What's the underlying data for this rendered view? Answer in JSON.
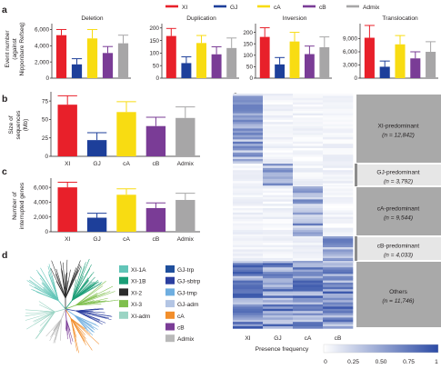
{
  "colors": {
    "XI": "#e8202a",
    "GJ": "#1d3f9a",
    "cA": "#f8dc12",
    "cB": "#7a3c96",
    "Admix": "#a7a6a7",
    "error": "inherit"
  },
  "legend_top": [
    "XI",
    "GJ",
    "cA",
    "cB",
    "Admix"
  ],
  "panels": {
    "a": "a",
    "b": "b",
    "c": "c",
    "d": "d",
    "e": "e"
  },
  "panel_a": {
    "ylabel_line1": "Event number",
    "ylabel_line2": "(against",
    "ylabel_line3": "Nipponbare Refseq)"
  },
  "chart_data": [
    {
      "id": "a-deletion",
      "type": "bar",
      "title": "Deletion",
      "categories": [
        "XI",
        "GJ",
        "cA",
        "cB",
        "Admix"
      ],
      "values": [
        5300,
        1700,
        4900,
        3100,
        4300
      ],
      "errors": [
        700,
        700,
        1100,
        800,
        1000
      ],
      "yticks": [
        0,
        2000,
        4000,
        6000
      ],
      "ytick_labels": [
        "0",
        "2,000",
        "4,000",
        "6,000"
      ],
      "ylim": [
        0,
        6500
      ]
    },
    {
      "id": "a-duplication",
      "type": "bar",
      "title": "Duplication",
      "categories": [
        "XI",
        "GJ",
        "cA",
        "cB",
        "Admix"
      ],
      "values": [
        168,
        60,
        140,
        95,
        120
      ],
      "errors": [
        30,
        25,
        30,
        30,
        40
      ],
      "yticks": [
        0,
        50,
        100,
        150,
        200
      ],
      "ytick_labels": [
        "0",
        "50",
        "100",
        "150",
        "200"
      ],
      "ylim": [
        0,
        210
      ]
    },
    {
      "id": "a-inversion",
      "type": "bar",
      "title": "Inversion",
      "categories": [
        "XI",
        "GJ",
        "cA",
        "cB",
        "Admix"
      ],
      "values": [
        180,
        60,
        160,
        105,
        135
      ],
      "errors": [
        40,
        30,
        40,
        35,
        45
      ],
      "yticks": [
        0,
        50,
        100,
        150,
        200
      ],
      "ytick_labels": [
        "0",
        "50",
        "100",
        "150",
        "200"
      ],
      "ylim": [
        0,
        230
      ]
    },
    {
      "id": "a-translocation",
      "type": "bar",
      "title": "Translocation",
      "categories": [
        "XI",
        "GJ",
        "cA",
        "cB",
        "Admix"
      ],
      "values": [
        9200,
        2600,
        7700,
        4500,
        6000
      ],
      "errors": [
        2800,
        1300,
        2000,
        1500,
        2300
      ],
      "yticks": [
        0,
        3000,
        6000,
        9000
      ],
      "ytick_labels": [
        "0",
        "3,000",
        "6,000",
        "9,000"
      ],
      "ylim": [
        0,
        12000
      ]
    },
    {
      "id": "b",
      "type": "bar",
      "title": "",
      "ylabel": "Size of sequences (Mb)",
      "ylabel_lines": [
        "Size of",
        "sequences",
        "(Mb)"
      ],
      "categories": [
        "XI",
        "GJ",
        "cA",
        "cB",
        "Admix"
      ],
      "values": [
        70,
        22,
        60,
        41,
        52
      ],
      "errors": [
        12,
        10,
        14,
        12,
        15
      ],
      "yticks": [
        0,
        25,
        50,
        75
      ],
      "ytick_labels": [
        "0",
        "25",
        "50",
        "75"
      ],
      "ylim": [
        0,
        85
      ]
    },
    {
      "id": "c",
      "type": "bar",
      "title": "",
      "ylabel": "Number of interrupted genes",
      "ylabel_lines": [
        "Number of",
        "interrupted genes"
      ],
      "categories": [
        "XI",
        "GJ",
        "cA",
        "cB",
        "Admix"
      ],
      "values": [
        6000,
        1900,
        5000,
        3200,
        4300
      ],
      "errors": [
        700,
        600,
        800,
        700,
        900
      ],
      "yticks": [
        0,
        2000,
        4000,
        6000
      ],
      "ytick_labels": [
        "0",
        "2,000",
        "4,000",
        "6,000"
      ],
      "ylim": [
        0,
        7000
      ]
    }
  ],
  "tree_legend": {
    "col1": [
      {
        "label": "XI-1A",
        "color": "#62c5b8"
      },
      {
        "label": "XI-1B",
        "color": "#1b9e77"
      },
      {
        "label": "XI-2",
        "color": "#2b2b2b"
      },
      {
        "label": "XI-3",
        "color": "#7fbf4d"
      },
      {
        "label": "XI-adm",
        "color": "#9bd4c4"
      }
    ],
    "col2": [
      {
        "label": "GJ-trp",
        "color": "#1f4f9c"
      },
      {
        "label": "GJ-sbtrp",
        "color": "#2b3fa0"
      },
      {
        "label": "GJ-tmp",
        "color": "#6faee0"
      },
      {
        "label": "GJ-adm",
        "color": "#b3c5e4"
      },
      {
        "label": "cA",
        "color": "#f28e2b"
      },
      {
        "label": "cB",
        "color": "#7a3c96"
      },
      {
        "label": "Admix",
        "color": "#b9b9b9"
      }
    ]
  },
  "heatmap": {
    "columns": [
      "XI",
      "GJ",
      "cA",
      "cB"
    ],
    "groups": [
      {
        "name": "XI-predominant",
        "count": "(n = 12,842)"
      },
      {
        "name": "GJ-predominant",
        "count": "(n = 3,792)"
      },
      {
        "name": "cA-predominant",
        "count": "(n = 9,544)"
      },
      {
        "name": "cB-predominant",
        "count": "(n = 4,033)"
      },
      {
        "name": "Others",
        "count": "(n = 11,746)"
      }
    ],
    "colorbar": {
      "title": "Presence frequency",
      "ticks": [
        "0",
        "0.25",
        "0.50",
        "0.75",
        "1"
      ],
      "low": "#ffffff",
      "high": "#2c4ba5"
    }
  }
}
